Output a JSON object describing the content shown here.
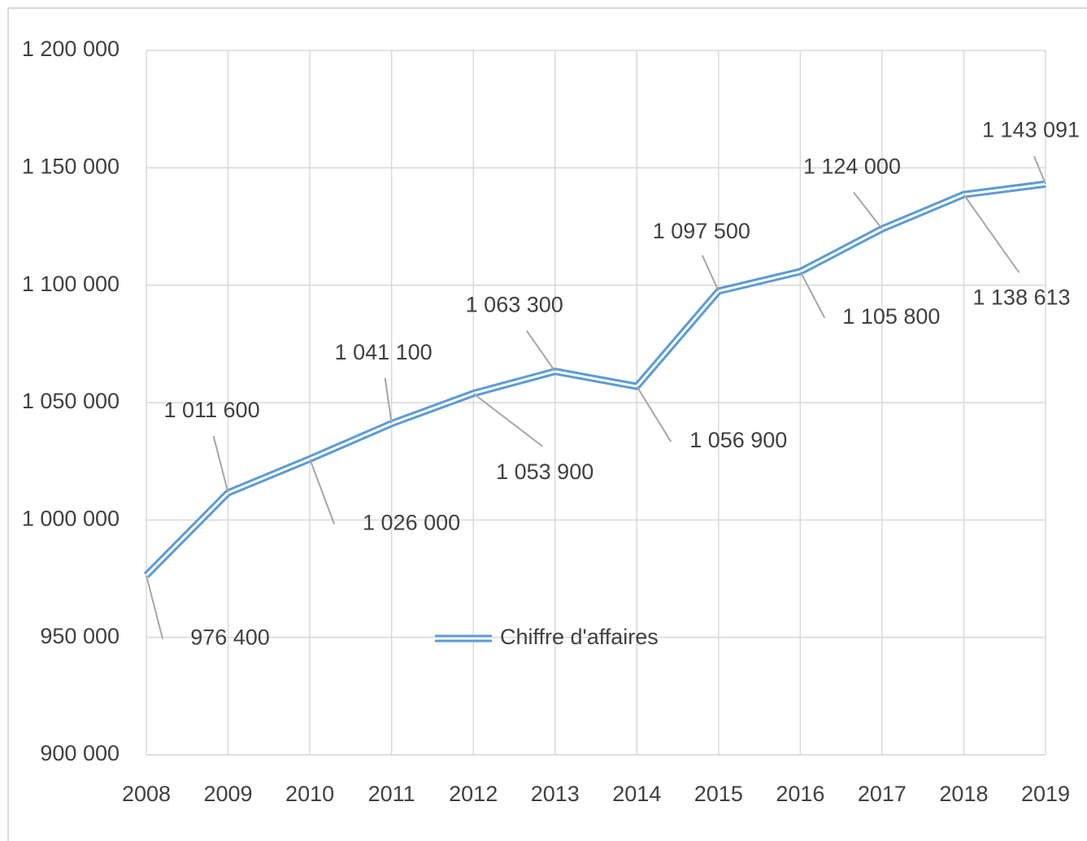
{
  "chart_data": {
    "type": "line",
    "x": [
      2008,
      2009,
      2010,
      2011,
      2012,
      2013,
      2014,
      2015,
      2016,
      2017,
      2018,
      2019
    ],
    "series": [
      {
        "name": "Chiffre d'affaires",
        "color": "#5b9bd5",
        "values": [
          976400,
          1011600,
          1026000,
          1041100,
          1053900,
          1063300,
          1056900,
          1097500,
          1105800,
          1124000,
          1138613,
          1143091
        ],
        "value_labels": [
          "976 400",
          "1 011 600",
          "1 026 000",
          "1 041 100",
          "1 053 900",
          "1 063 300",
          "1 056 900",
          "1 097 500",
          "1 105 800",
          "1 124 000",
          "1 138 613",
          "1 143 091"
        ]
      }
    ],
    "xlim": [
      2008,
      2019
    ],
    "xticks": [
      2008,
      2009,
      2010,
      2011,
      2012,
      2013,
      2014,
      2015,
      2016,
      2017,
      2018,
      2019
    ],
    "ylim": [
      900000,
      1200000
    ],
    "yticks": [
      {
        "value": 900000,
        "label": "900 000"
      },
      {
        "value": 950000,
        "label": "950 000"
      },
      {
        "value": 1000000,
        "label": "1 000 000"
      },
      {
        "value": 1050000,
        "label": "1 050 000"
      },
      {
        "value": 1100000,
        "label": "1 100 000"
      },
      {
        "value": 1150000,
        "label": "1 150 000"
      },
      {
        "value": 1200000,
        "label": "1 200 000"
      }
    ],
    "grid": true,
    "legend": "center"
  }
}
